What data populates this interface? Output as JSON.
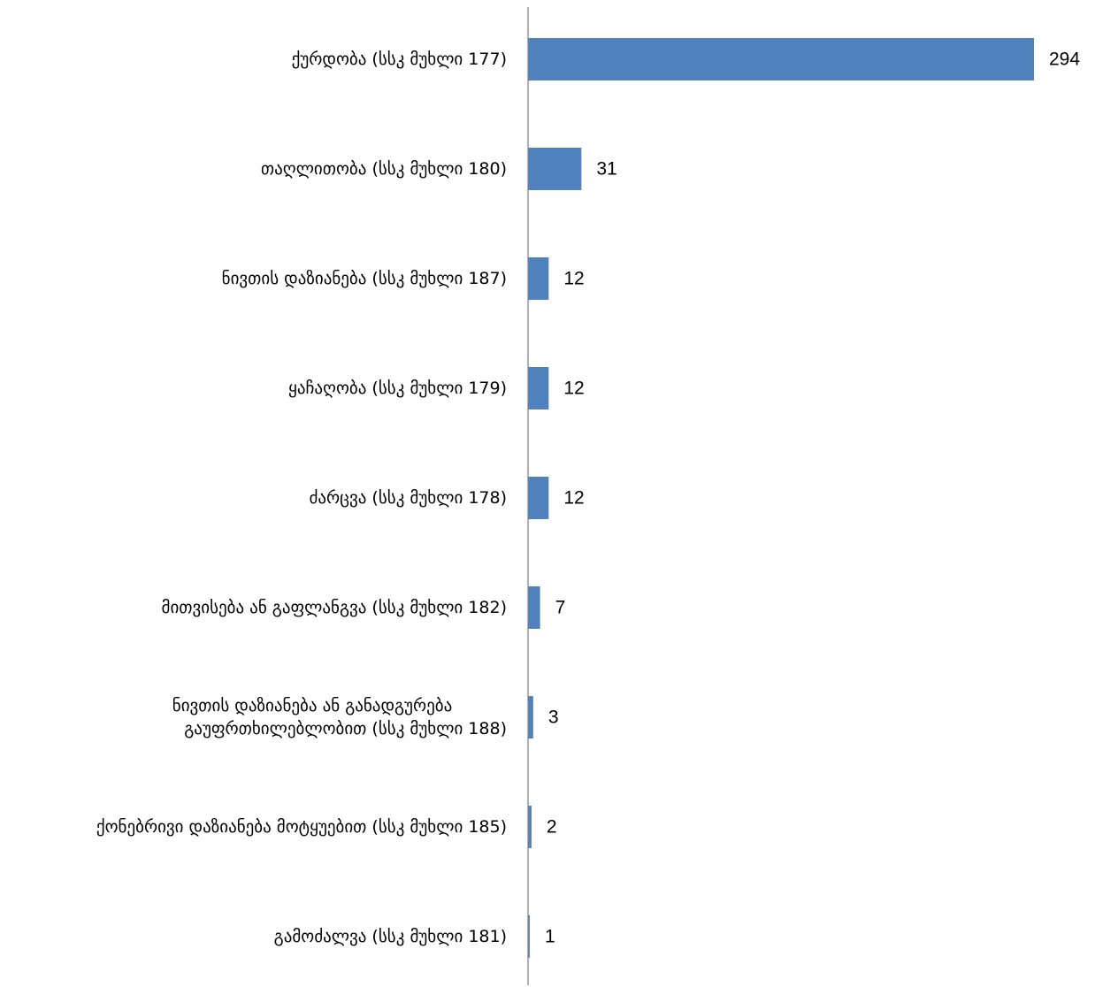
{
  "chart_data": {
    "type": "bar",
    "orientation": "horizontal",
    "categories": [
      "ქურდობა (სსკ მუხლი 177)",
      "თაღლითობა (სსკ მუხლი 180)",
      "ნივთის დაზიანება (სსკ მუხლი 187)",
      "ყაჩაღობა (სსკ მუხლი 179)",
      "ძარცვა (სსკ მუხლი 178)",
      "მითვისება ან გაფლანგვა (სსკ მუხლი 182)",
      "ნივთის დაზიანება ან განადგურება გაუფრთხილებლობით  (სსკ  მუხლი 188)",
      "ქონებრივი დაზიანება მოტყუებით (სსკ მუხლი 185)",
      "გამოძალვა (სსკ მუხლი 181)"
    ],
    "category_lines": [
      [
        "ქურდობა (სსკ მუხლი 177)"
      ],
      [
        "თაღლითობა (სსკ მუხლი 180)"
      ],
      [
        "ნივთის დაზიანება (სსკ მუხლი 187)"
      ],
      [
        "ყაჩაღობა (სსკ მუხლი 179)"
      ],
      [
        "ძარცვა (სსკ მუხლი 178)"
      ],
      [
        "მითვისება ან გაფლანგვა (სსკ მუხლი 182)"
      ],
      [
        "ნივთის დაზიანება ან განადგურება",
        "გაუფრთხილებლობით  (სსკ  მუხლი 188)"
      ],
      [
        "ქონებრივი დაზიანება მოტყუებით (სსკ მუხლი 185)"
      ],
      [
        "გამოძალვა (სსკ მუხლი 181)"
      ]
    ],
    "values": [
      294,
      31,
      12,
      12,
      12,
      7,
      3,
      2,
      1
    ],
    "data_labels": [
      "294",
      "31",
      "12",
      "12",
      "12",
      "7",
      "3",
      "2",
      "1"
    ],
    "xlim": [
      0,
      294
    ],
    "title": "",
    "xlabel": "",
    "ylabel": "",
    "grid": false,
    "legend": "none",
    "bar_color": "#4F81BD",
    "axis_color": "#868686"
  }
}
